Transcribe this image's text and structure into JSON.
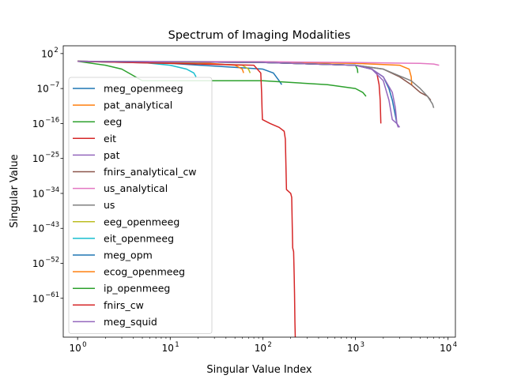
{
  "chart_data": {
    "type": "line",
    "title": "Spectrum of Imaging Modalities",
    "xlabel": "Singular Value Index",
    "ylabel": "Singular Value",
    "xscale": "log",
    "yscale": "log",
    "xlim": [
      0.7,
      12000
    ],
    "ylim": [
      1e-71,
      10000.0
    ],
    "grid": false,
    "legend_position": "left",
    "x_ticks": [
      {
        "value": 1,
        "mant": "10",
        "exp": "0"
      },
      {
        "value": 10,
        "mant": "10",
        "exp": "1"
      },
      {
        "value": 100,
        "mant": "10",
        "exp": "2"
      },
      {
        "value": 1000,
        "mant": "10",
        "exp": "3"
      },
      {
        "value": 10000,
        "mant": "10",
        "exp": "4"
      }
    ],
    "y_ticks": [
      {
        "value": 100.0,
        "mant": "10",
        "exp": "2"
      },
      {
        "value": 1e-07,
        "mant": "10",
        "exp": "−7"
      },
      {
        "value": 1e-16,
        "mant": "10",
        "exp": "−16"
      },
      {
        "value": 1e-25,
        "mant": "10",
        "exp": "−25"
      },
      {
        "value": 1e-34,
        "mant": "10",
        "exp": "−34"
      },
      {
        "value": 1e-43,
        "mant": "10",
        "exp": "−43"
      },
      {
        "value": 1e-52,
        "mant": "10",
        "exp": "−52"
      },
      {
        "value": 1e-61,
        "mant": "10",
        "exp": "−61"
      }
    ],
    "series": [
      {
        "name": "meg_openmeeg",
        "color": "#1f77b4",
        "points": [
          [
            1,
            1
          ],
          [
            10,
            0.3
          ],
          [
            100,
            0.01
          ],
          [
            130,
            0.001
          ],
          [
            150,
            1e-05
          ],
          [
            160,
            1e-06
          ]
        ]
      },
      {
        "name": "pat_analytical",
        "color": "#ff7f0e",
        "points": [
          [
            1,
            1
          ],
          [
            100,
            0.6
          ],
          [
            1000,
            0.3
          ],
          [
            3000,
            0.1
          ],
          [
            3800,
            0.01
          ],
          [
            4000,
            0.0001
          ],
          [
            4050,
            1e-06
          ]
        ]
      },
      {
        "name": "eeg",
        "color": "#2ca02c",
        "points": [
          [
            1,
            1
          ],
          [
            2,
            0.1
          ],
          [
            3,
            0.01
          ],
          [
            5,
            1e-05
          ],
          [
            6,
            1e-05
          ],
          [
            100,
            1e-05
          ],
          [
            500,
            1e-06
          ],
          [
            1000,
            1e-07
          ],
          [
            1200,
            1e-08
          ],
          [
            1300,
            1e-09
          ]
        ]
      },
      {
        "name": "eit",
        "color": "#d62728",
        "points": [
          [
            1,
            1
          ],
          [
            100,
            0.5
          ],
          [
            1000,
            0.1
          ],
          [
            1500,
            0.01
          ],
          [
            1700,
            0.001
          ],
          [
            1800,
            1e-06
          ],
          [
            1850,
            1e-10
          ],
          [
            1880,
            1e-16
          ]
        ]
      },
      {
        "name": "pat",
        "color": "#9467bd",
        "points": [
          [
            1,
            1
          ],
          [
            100,
            0.5
          ],
          [
            1000,
            0.1
          ],
          [
            1500,
            0.01
          ],
          [
            2000,
            1e-05
          ],
          [
            2300,
            1e-10
          ],
          [
            2500,
            1e-15
          ],
          [
            2800,
            1e-16
          ],
          [
            2900,
            1e-17
          ]
        ]
      },
      {
        "name": "fnirs_analytical_cw",
        "color": "#8c564b",
        "points": [
          [
            1,
            1
          ],
          [
            100,
            0.5
          ],
          [
            1000,
            0.1
          ],
          [
            2000,
            0.01
          ],
          [
            3000,
            0.0001
          ],
          [
            4000,
            1e-06
          ],
          [
            5000,
            1e-08
          ],
          [
            6000,
            1e-09
          ],
          [
            6500,
            1e-10
          ]
        ]
      },
      {
        "name": "us_analytical",
        "color": "#e377c2",
        "points": [
          [
            1,
            1
          ],
          [
            100,
            0.8
          ],
          [
            1000,
            0.5
          ],
          [
            5000,
            0.3
          ],
          [
            7000,
            0.2
          ],
          [
            8000,
            0.1
          ]
        ]
      },
      {
        "name": "us",
        "color": "#7f7f7f",
        "points": [
          [
            1,
            1
          ],
          [
            100,
            0.5
          ],
          [
            1000,
            0.1
          ],
          [
            2000,
            0.01
          ],
          [
            4000,
            1e-05
          ],
          [
            5000,
            1e-07
          ],
          [
            6000,
            1e-09
          ],
          [
            6800,
            1e-11
          ],
          [
            7000,
            1e-12
          ]
        ]
      },
      {
        "name": "eeg_openmeeg",
        "color": "#bcbd22",
        "points": [
          [
            1,
            1
          ],
          [
            10,
            0.5
          ],
          [
            60,
            0.1
          ],
          [
            70,
            0.01
          ],
          [
            73,
            0.001
          ]
        ]
      },
      {
        "name": "eit_openmeeg",
        "color": "#17becf",
        "points": [
          [
            1,
            1
          ],
          [
            5,
            0.5
          ],
          [
            10,
            0.1
          ],
          [
            15,
            0.01
          ],
          [
            18,
            0.001
          ],
          [
            19,
            0.0001
          ]
        ]
      },
      {
        "name": "meg_opm",
        "color": "#1f77b4",
        "points": [
          [
            1,
            1
          ],
          [
            100,
            0.5
          ],
          [
            1000,
            0.1
          ],
          [
            1500,
            0.01
          ],
          [
            2000,
            0.0001
          ],
          [
            2300,
            1e-07
          ],
          [
            2500,
            1e-10
          ],
          [
            2700,
            1e-14
          ],
          [
            2800,
            1e-16
          ]
        ]
      },
      {
        "name": "ecog_openmeeg",
        "color": "#ff7f0e",
        "points": [
          [
            1,
            1
          ],
          [
            20,
            0.5
          ],
          [
            50,
            0.1
          ],
          [
            60,
            0.01
          ],
          [
            62,
            0.001
          ]
        ]
      },
      {
        "name": "ip_openmeeg",
        "color": "#2ca02c",
        "points": [
          [
            1,
            1
          ],
          [
            100,
            0.5
          ],
          [
            1000,
            0.1
          ],
          [
            1050,
            0.01
          ],
          [
            1060,
            0.001
          ]
        ]
      },
      {
        "name": "fnirs_cw",
        "color": "#d62728",
        "points": [
          [
            1,
            1
          ],
          [
            80,
            0.1
          ],
          [
            95,
            0.001
          ],
          [
            97,
            1e-08
          ],
          [
            98,
            1e-12
          ],
          [
            99,
            1e-15
          ],
          [
            120,
            1e-16
          ],
          [
            150,
            1e-17
          ],
          [
            170,
            1e-18
          ],
          [
            175,
            1e-20
          ],
          [
            180,
            1e-33
          ],
          [
            200,
            1e-34
          ],
          [
            205,
            1e-35
          ],
          [
            210,
            1e-48
          ],
          [
            215,
            1e-49
          ],
          [
            218,
            1e-55
          ],
          [
            220,
            1e-60
          ],
          [
            222,
            1e-67
          ],
          [
            224,
            1e-71
          ]
        ]
      },
      {
        "name": "meg_squid",
        "color": "#9467bd",
        "points": [
          [
            1,
            1
          ],
          [
            100,
            0.5
          ],
          [
            1000,
            0.1
          ],
          [
            1500,
            0.01
          ],
          [
            2000,
            0.0001
          ],
          [
            2500,
            1e-08
          ],
          [
            2700,
            1e-12
          ],
          [
            2800,
            1e-16
          ],
          [
            3000,
            1e-17
          ]
        ]
      }
    ]
  }
}
